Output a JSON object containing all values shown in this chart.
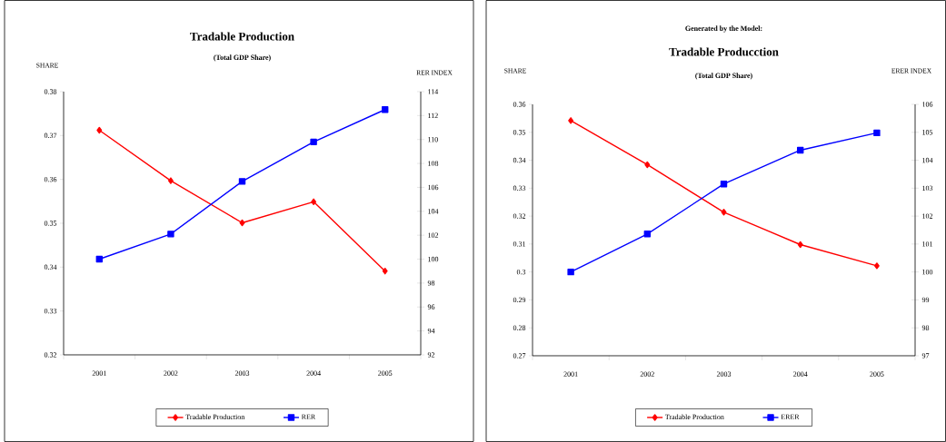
{
  "chart_data": [
    {
      "type": "line",
      "title": "Tradable Production",
      "subtitle": "(Total GDP Share)",
      "ylabel": "SHARE",
      "y2label": "RER INDEX",
      "categories": [
        "2001",
        "2002",
        "2003",
        "2004",
        "2005"
      ],
      "series": [
        {
          "name": "Tradable Production",
          "color": "#ff0000",
          "marker": "diamond",
          "values": [
            0.3712,
            0.3597,
            0.3501,
            0.3549,
            0.3391
          ]
        },
        {
          "name": "RER",
          "color": "#0000ff",
          "marker": "square",
          "axis": "y2",
          "values": [
            100.0,
            102.1,
            106.5,
            109.8,
            112.5
          ]
        }
      ],
      "ylim": [
        0.32,
        0.38
      ],
      "yticks": [
        0.32,
        0.33,
        0.34,
        0.35,
        0.36,
        0.37,
        0.38
      ],
      "y2lim": [
        92,
        114
      ],
      "y2ticks": [
        92,
        94,
        96,
        98,
        100,
        102,
        104,
        106,
        108,
        110,
        112,
        114
      ],
      "legend": "bottom"
    },
    {
      "type": "line",
      "title": "Tradable Producction",
      "subtitle": "(Total GDP Share)",
      "annotations": [
        "Generated by the Model:"
      ],
      "ylabel": "SHARE",
      "y2label": "ERER INDEX",
      "categories": [
        "2001",
        "2002",
        "2003",
        "2004",
        "2005"
      ],
      "series": [
        {
          "name": "Tradable Production",
          "color": "#ff0000",
          "marker": "diamond",
          "values": [
            0.3542,
            0.3384,
            0.3214,
            0.3098,
            0.3022
          ]
        },
        {
          "name": "ERER",
          "color": "#0000ff",
          "marker": "square",
          "axis": "y2",
          "values": [
            100.0,
            101.36,
            103.15,
            104.36,
            104.98
          ]
        }
      ],
      "ylim": [
        0.27,
        0.36
      ],
      "yticks": [
        0.27,
        0.28,
        0.29,
        0.3,
        0.31,
        0.32,
        0.33,
        0.34,
        0.35,
        0.36
      ],
      "y2lim": [
        97,
        106
      ],
      "y2ticks": [
        97,
        98,
        99,
        100,
        101,
        102,
        103,
        104,
        105,
        106
      ],
      "legend": "bottom"
    }
  ]
}
